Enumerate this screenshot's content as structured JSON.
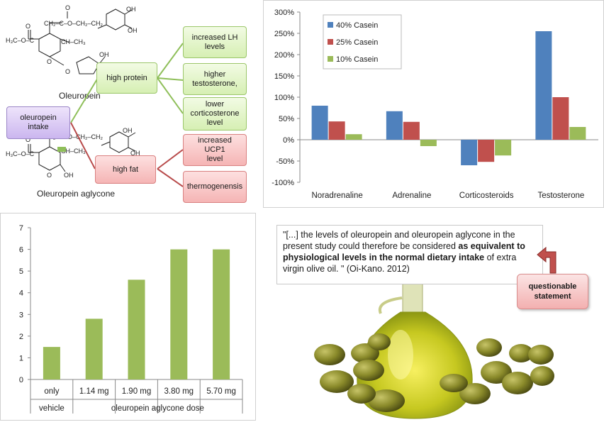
{
  "diagram": {
    "molecules": {
      "top_label": "Oleuropein",
      "bottom_label": "Oleuropein aglycone"
    },
    "nodes": {
      "intake": "oleuropein\nintake",
      "high_protein": "high protein",
      "high_fat": "high fat",
      "lh": "increased LH\nlevels",
      "testosterone": "higher\ntestosterone,",
      "corticosterone": "lower\ncorticosterone\nlevel",
      "ucp1": "increased UCP1\nlevel",
      "thermo": "thermogenensis"
    },
    "colors": {
      "green_link": "#8fbf5a",
      "red_link": "#b84b4b"
    }
  },
  "quote": {
    "part1": "\"[...] the levels of oleuropein and oleuropein aglycone in the present study could therefore be considered ",
    "bold": "as equivalent to physiological levels in the normal dietary intake",
    "part2": " of extra virgin olive oil. \" (Oi-Kano. 2012)",
    "callout": "questionable\nstatement"
  },
  "chart_data": [
    {
      "type": "bar",
      "categories": [
        "Noradrenaline",
        "Adrenaline",
        "Corticosteroids",
        "Testosterone"
      ],
      "series": [
        {
          "name": "40% Casein",
          "values": [
            80,
            67,
            -60,
            255
          ],
          "color": "#4f81bd"
        },
        {
          "name": "25% Casein",
          "values": [
            43,
            42,
            -52,
            100
          ],
          "color": "#c0504d"
        },
        {
          "name": "10% Casein",
          "values": [
            13,
            -15,
            -37,
            30
          ],
          "color": "#9bbb59"
        }
      ],
      "yticks": [
        "300%",
        "250%",
        "200%",
        "150%",
        "100%",
        "50%",
        "0%",
        "-50%",
        "-100%"
      ],
      "ylim": [
        -100,
        300
      ],
      "legend_position": "top-left"
    },
    {
      "type": "bar",
      "categories": [
        "only",
        "1.14 mg",
        "1.90 mg",
        "3.80 mg",
        "5.70 mg"
      ],
      "values": [
        1.5,
        2.8,
        4.6,
        6,
        6
      ],
      "group_labels": [
        "vehicle",
        "oleuropein aglycone dose"
      ],
      "yticks": [
        "7",
        "6",
        "5",
        "4",
        "3",
        "2",
        "1",
        "0"
      ],
      "ylim": [
        0,
        7
      ],
      "color": "#9bbb59"
    }
  ]
}
